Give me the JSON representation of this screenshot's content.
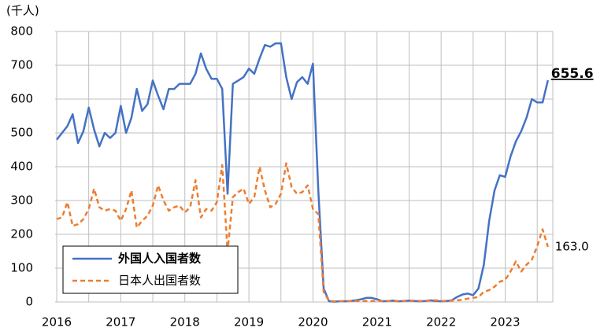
{
  "chart_data": {
    "type": "line",
    "y_label": "(千人)",
    "categories": [
      "2016",
      null,
      null,
      null,
      null,
      null,
      null,
      null,
      null,
      null,
      null,
      null,
      "2017",
      null,
      null,
      null,
      null,
      null,
      null,
      null,
      null,
      null,
      null,
      null,
      "2018",
      null,
      null,
      null,
      null,
      null,
      null,
      null,
      null,
      null,
      null,
      null,
      "2019",
      null,
      null,
      null,
      null,
      null,
      null,
      null,
      null,
      null,
      null,
      null,
      "2020",
      null,
      null,
      null,
      null,
      null,
      null,
      null,
      null,
      null,
      null,
      null,
      "2021",
      null,
      null,
      null,
      null,
      null,
      null,
      null,
      null,
      null,
      null,
      null,
      "2022",
      null,
      null,
      null,
      null,
      null,
      null,
      null,
      null,
      null,
      null,
      null,
      "2023",
      null,
      null,
      null,
      null,
      null,
      null,
      null,
      null
    ],
    "series": [
      {
        "name": "外国人入国者数",
        "color": "#4472c4",
        "dashed": false,
        "bold": true,
        "values": [
          480,
          500,
          520,
          555,
          470,
          505,
          575,
          510,
          460,
          500,
          485,
          500,
          580,
          500,
          545,
          630,
          565,
          585,
          655,
          610,
          570,
          630,
          630,
          645,
          645,
          645,
          675,
          735,
          690,
          660,
          660,
          630,
          320,
          645,
          655,
          665,
          690,
          675,
          720,
          760,
          755,
          765,
          765,
          665,
          600,
          650,
          665,
          645,
          705,
          330,
          40,
          2,
          1,
          2,
          2,
          3,
          5,
          8,
          12,
          12,
          8,
          2,
          3,
          4,
          2,
          3,
          4,
          3,
          2,
          3,
          5,
          3,
          2,
          3,
          5,
          15,
          22,
          25,
          20,
          40,
          110,
          240,
          330,
          375,
          370,
          430,
          475,
          505,
          545,
          600,
          590,
          590,
          655.6
        ],
        "value_labels": {
          "92": "655.6"
        }
      },
      {
        "name": "日本人出国者数",
        "color": "#ed7d31",
        "dashed": true,
        "bold": false,
        "values": [
          245,
          250,
          295,
          225,
          230,
          245,
          275,
          335,
          280,
          270,
          275,
          270,
          240,
          275,
          330,
          220,
          240,
          255,
          285,
          345,
          300,
          270,
          280,
          285,
          265,
          280,
          360,
          250,
          275,
          270,
          295,
          405,
          150,
          310,
          325,
          335,
          290,
          310,
          400,
          330,
          280,
          290,
          320,
          410,
          340,
          320,
          325,
          345,
          275,
          260,
          30,
          3,
          2,
          2,
          3,
          3,
          3,
          3,
          3,
          3,
          3,
          3,
          3,
          3,
          2,
          3,
          4,
          4,
          3,
          3,
          5,
          5,
          3,
          3,
          4,
          5,
          6,
          10,
          12,
          15,
          30,
          35,
          45,
          60,
          65,
          90,
          120,
          90,
          110,
          125,
          165,
          215,
          163
        ],
        "value_labels": {
          "92": "163.0"
        }
      }
    ],
    "ylim": [
      0,
      800
    ],
    "yticks": [
      0,
      100,
      200,
      300,
      400,
      500,
      600,
      700,
      800
    ],
    "grid": true,
    "legend": "lower left"
  }
}
